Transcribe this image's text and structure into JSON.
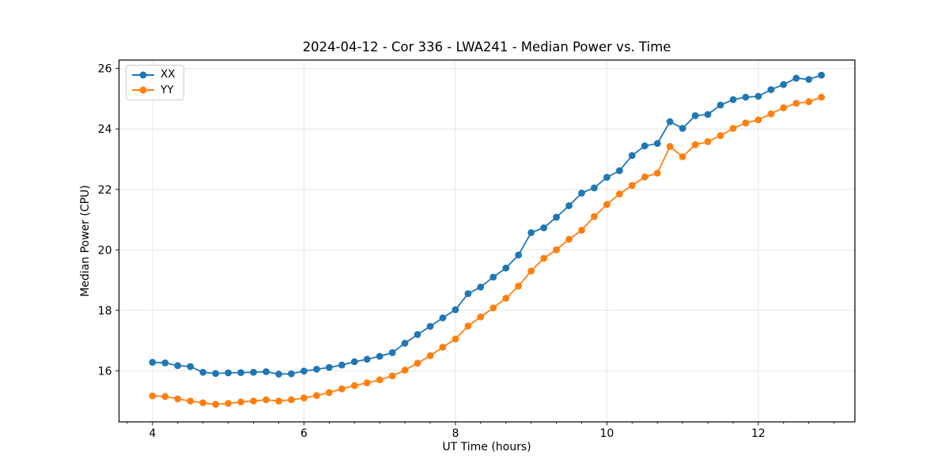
{
  "chart_data": {
    "type": "line",
    "title": "2024-04-12 - Cor 336 - LWA241 - Median Power vs. Time",
    "xlabel": "UT Time (hours)",
    "ylabel": "Median Power (CPU)",
    "xlim": [
      3.558,
      13.275
    ],
    "ylim": [
      14.31,
      26.28
    ],
    "x_ticks": [
      4,
      6,
      8,
      10,
      12
    ],
    "y_ticks": [
      16,
      18,
      20,
      22,
      24,
      26
    ],
    "x_minor_tick_step": 0.33333,
    "grid": true,
    "grid_color": "#e6e6e6",
    "legend_position": "upper-left",
    "x": [
      4.0,
      4.167,
      4.333,
      4.5,
      4.667,
      4.833,
      5.0,
      5.167,
      5.333,
      5.5,
      5.667,
      5.833,
      6.0,
      6.167,
      6.333,
      6.5,
      6.667,
      6.833,
      7.0,
      7.167,
      7.333,
      7.5,
      7.667,
      7.833,
      8.0,
      8.167,
      8.333,
      8.5,
      8.667,
      8.833,
      9.0,
      9.167,
      9.333,
      9.5,
      9.667,
      9.833,
      10.0,
      10.167,
      10.333,
      10.5,
      10.667,
      10.833,
      11.0,
      11.167,
      11.333,
      11.5,
      11.667,
      11.833,
      12.0,
      12.167,
      12.333,
      12.5,
      12.667,
      12.833
    ],
    "series": [
      {
        "name": "XX",
        "color": "#1f77b4",
        "values": [
          16.28,
          16.26,
          16.17,
          16.14,
          15.95,
          15.91,
          15.93,
          15.94,
          15.95,
          15.97,
          15.89,
          15.9,
          15.99,
          16.05,
          16.11,
          16.19,
          16.3,
          16.38,
          16.48,
          16.6,
          16.91,
          17.2,
          17.47,
          17.75,
          18.02,
          18.55,
          18.77,
          19.1,
          19.4,
          19.83,
          20.57,
          20.73,
          21.08,
          21.46,
          21.88,
          22.05,
          22.4,
          22.62,
          23.12,
          23.44,
          23.52,
          24.24,
          24.02,
          24.44,
          24.48,
          24.79,
          24.97,
          25.05,
          25.08,
          25.3,
          25.47,
          25.68,
          25.64,
          25.78
        ]
      },
      {
        "name": "YY",
        "color": "#ff7f0e",
        "values": [
          15.17,
          15.15,
          15.07,
          15.0,
          14.94,
          14.89,
          14.92,
          14.97,
          15.0,
          15.04,
          15.0,
          15.04,
          15.1,
          15.18,
          15.28,
          15.4,
          15.51,
          15.6,
          15.7,
          15.83,
          16.02,
          16.25,
          16.5,
          16.78,
          17.05,
          17.48,
          17.78,
          18.08,
          18.4,
          18.8,
          19.3,
          19.72,
          20.0,
          20.35,
          20.65,
          21.1,
          21.5,
          21.85,
          22.13,
          22.41,
          22.54,
          23.42,
          23.08,
          23.48,
          23.58,
          23.78,
          24.02,
          24.2,
          24.3,
          24.5,
          24.7,
          24.85,
          24.9,
          25.05
        ]
      }
    ]
  }
}
